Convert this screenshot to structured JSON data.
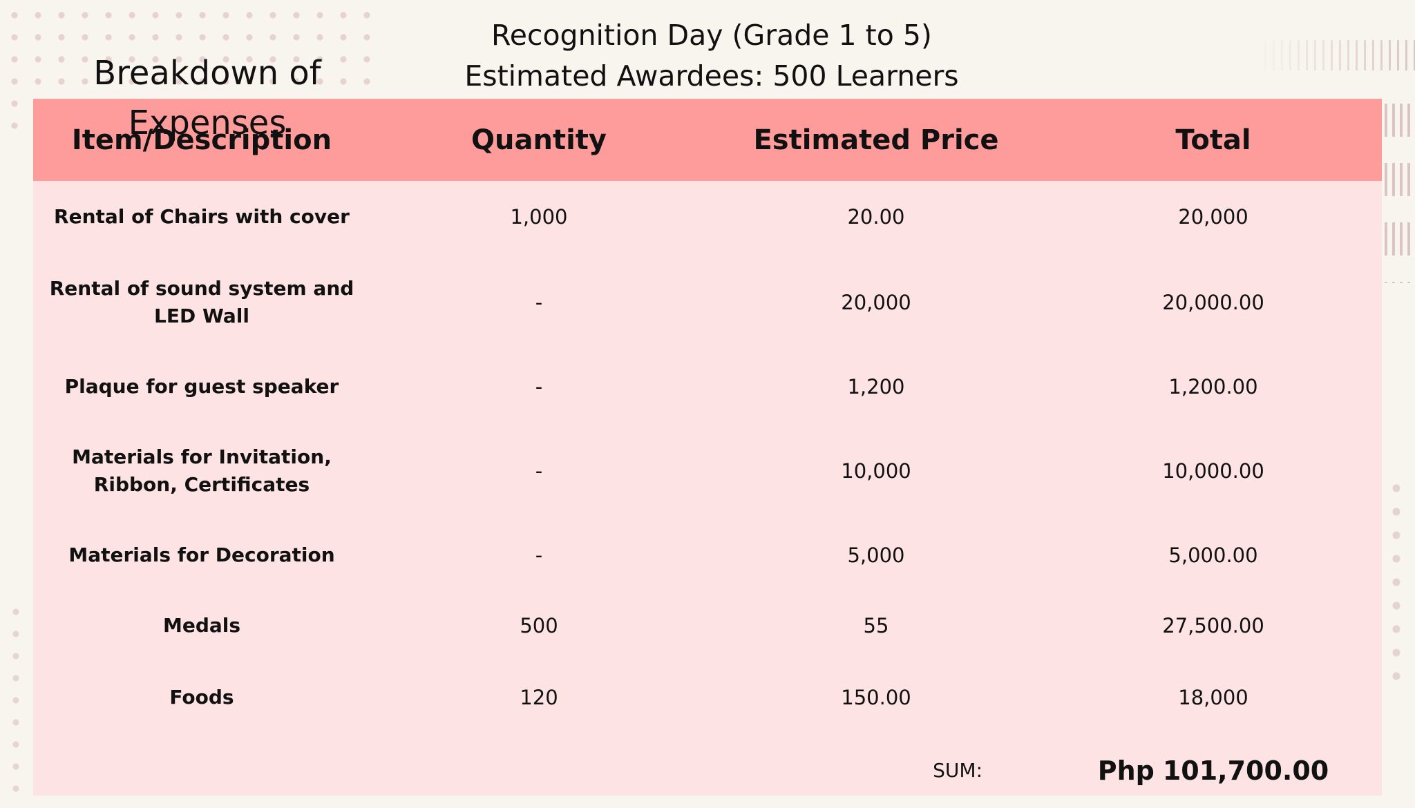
{
  "slide": {
    "title": "Breakdown of Expenses",
    "subtitle_line1": "Recognition Day (Grade 1 to 5)",
    "subtitle_line2": "Estimated Awardees: 500 Learners"
  },
  "table": {
    "headers": [
      "Item/Description",
      "Quantity",
      "Estimated Price",
      "Total"
    ],
    "rows": [
      {
        "item": "Rental of Chairs with cover",
        "quantity": "1,000",
        "price": "20.00",
        "total": "20,000"
      },
      {
        "item": "Rental of sound system and LED Wall",
        "quantity": "-",
        "price": "20,000",
        "total": "20,000.00"
      },
      {
        "item": "Plaque for guest speaker",
        "quantity": "-",
        "price": "1,200",
        "total": "1,200.00"
      },
      {
        "item": "Materials for Invitation, Ribbon, Certificates",
        "quantity": "-",
        "price": "10,000",
        "total": "10,000.00"
      },
      {
        "item": "Materials for Decoration",
        "quantity": "-",
        "price": "5,000",
        "total": "5,000.00"
      },
      {
        "item": "Medals",
        "quantity": "500",
        "price": "55",
        "total": "27,500.00"
      },
      {
        "item": "Foods",
        "quantity": "120",
        "price": "150.00",
        "total": "18,000"
      }
    ],
    "sum_label": "SUM:",
    "sum_currency": "Php",
    "sum_value": "101,700.00"
  },
  "colors": {
    "background": "#f8f4ee",
    "header_fill": "#fe9c9c",
    "table_fill": "#fde3e3",
    "dots": "#e4cccc"
  }
}
